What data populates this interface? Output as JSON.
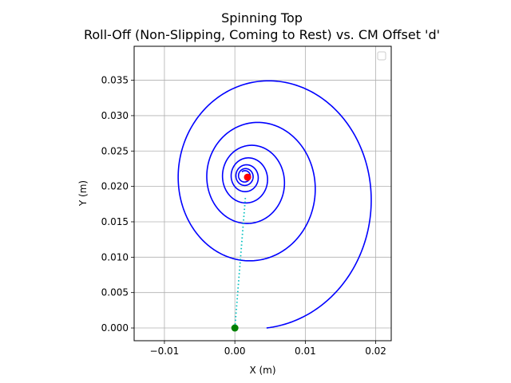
{
  "chart_data": {
    "type": "line",
    "title": "Spinning Top",
    "subtitle": "Roll-Off (Non-Slipping, Coming to Rest) vs. CM Offset 'd'",
    "xlabel": "X (m)",
    "ylabel": "Y (m)",
    "xlim": [
      -0.0143,
      0.0222
    ],
    "ylim": [
      -0.0018,
      0.0398
    ],
    "xticks": [
      -0.01,
      0.0,
      0.01,
      0.02
    ],
    "xtick_labels": [
      "−0.01",
      "0.00",
      "0.01",
      "0.02"
    ],
    "yticks": [
      0.0,
      0.005,
      0.01,
      0.015,
      0.02,
      0.025,
      0.03,
      0.035
    ],
    "ytick_labels": [
      "0.000",
      "0.005",
      "0.010",
      "0.015",
      "0.020",
      "0.025",
      "0.030",
      "0.035"
    ],
    "grid": true,
    "legend": "top-right (empty)",
    "aspect": "equal",
    "series": [
      {
        "kind": "spiral",
        "color": "#0000ff",
        "start": [
          0.0,
          0.0
        ],
        "center_x": [
          0.0045,
          0.0014
        ],
        "center_y": [
          0.0197,
          0.0215
        ],
        "radius_x": [
          0.0176,
          0.0007
        ],
        "radius_y": [
          0.0197,
          0.0007
        ],
        "radius_decay_per_turn": 0.55,
        "turns": 6.6,
        "end": [
          0.0018,
          0.0213
        ]
      },
      {
        "kind": "dotted-line",
        "color": "#00bfbf",
        "x": [
          0.0,
          0.0015
        ],
        "y": [
          0.0,
          0.0185
        ]
      }
    ],
    "markers": [
      {
        "x": 0.0,
        "y": 0.0,
        "color": "#008000"
      },
      {
        "x": 0.0018,
        "y": 0.0213,
        "color": "#ff0000"
      }
    ]
  }
}
